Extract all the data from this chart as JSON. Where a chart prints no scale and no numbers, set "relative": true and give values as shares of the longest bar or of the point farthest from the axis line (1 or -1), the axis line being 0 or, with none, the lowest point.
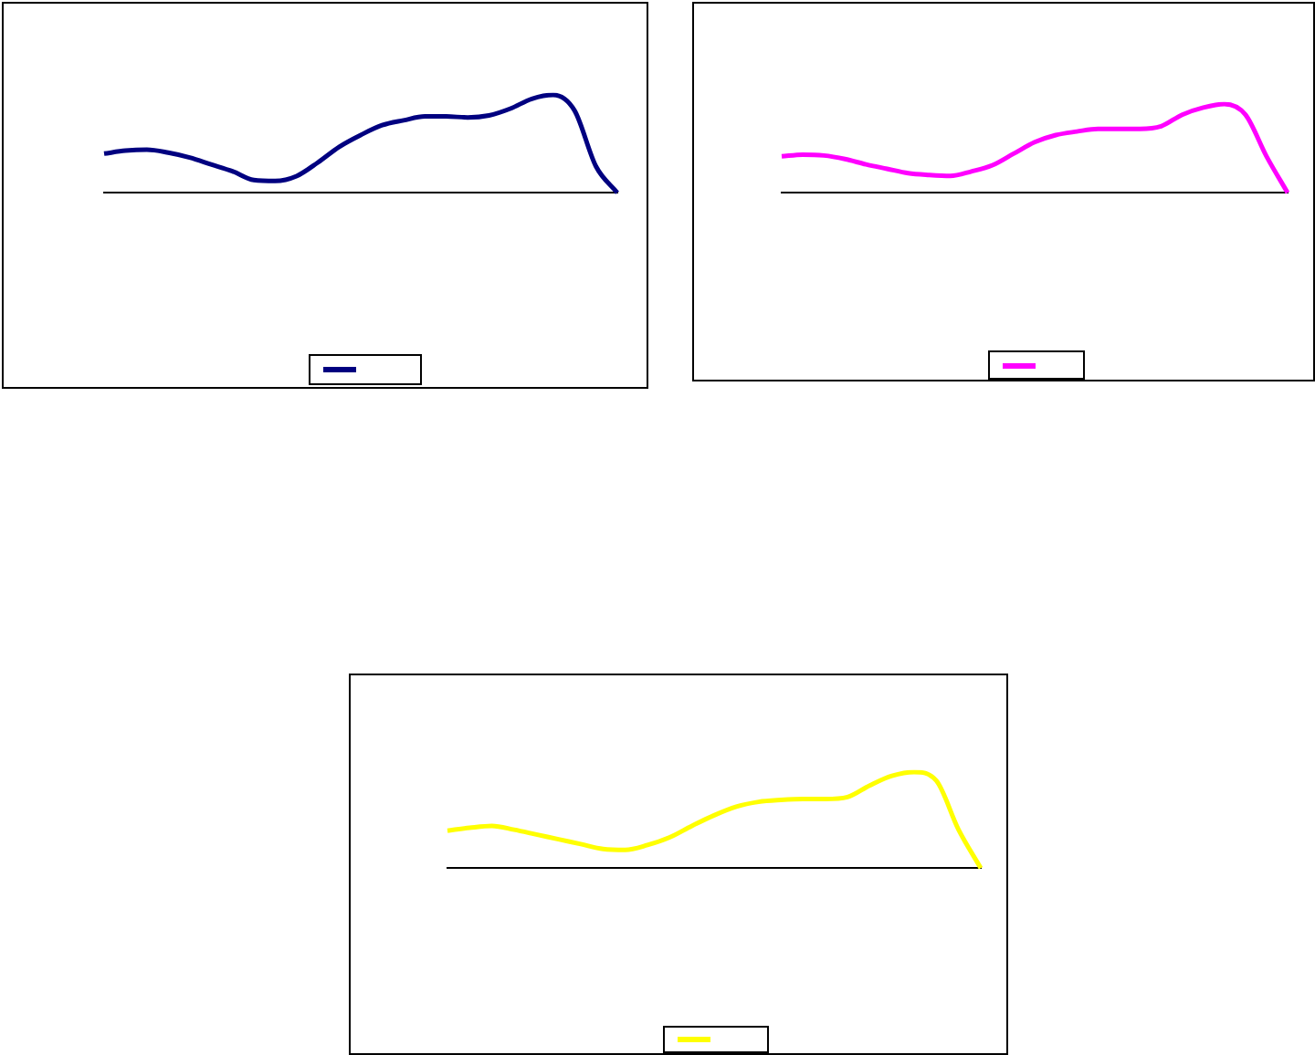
{
  "chart_data": [
    {
      "type": "line",
      "relative": true,
      "categories": [
        null,
        null,
        null,
        null,
        null,
        null,
        null,
        null,
        null,
        null,
        null,
        null,
        null,
        null,
        null,
        null,
        null,
        null,
        null,
        null,
        null,
        null,
        null,
        null,
        null
      ],
      "grid": false,
      "marker": "none",
      "line_style": "solid",
      "series": [
        {
          "color": "#000080",
          "values": [
            0.4,
            0.43,
            0.44,
            0.41,
            0.36,
            0.29,
            0.22,
            0.13,
            0.12,
            0.17,
            0.31,
            0.47,
            0.59,
            0.69,
            0.74,
            0.78,
            0.78,
            0.77,
            0.79,
            0.86,
            0.96,
            1,
            0.84,
            0.27,
            0
          ]
        }
      ]
    },
    {
      "type": "line",
      "relative": true,
      "categories": [
        null,
        null,
        null,
        null,
        null,
        null,
        null,
        null,
        null,
        null,
        null,
        null,
        null,
        null,
        null,
        null,
        null,
        null,
        null,
        null,
        null,
        null,
        null,
        null,
        null
      ],
      "grid": false,
      "marker": "none",
      "line_style": "solid",
      "series": [
        {
          "color": "#ff00ff",
          "values": [
            0.41,
            0.43,
            0.42,
            0.38,
            0.32,
            0.27,
            0.22,
            0.2,
            0.19,
            0.24,
            0.31,
            0.44,
            0.57,
            0.65,
            0.69,
            0.72,
            0.72,
            0.72,
            0.75,
            0.88,
            0.96,
            1,
            0.88,
            0.41,
            0
          ]
        }
      ]
    },
    {
      "type": "line",
      "relative": true,
      "categories": [
        null,
        null,
        null,
        null,
        null,
        null,
        null,
        null,
        null,
        null,
        null,
        null,
        null,
        null,
        null,
        null,
        null,
        null,
        null,
        null,
        null,
        null,
        null,
        null,
        null
      ],
      "grid": false,
      "marker": "none",
      "line_style": "solid",
      "series": [
        {
          "color": "#ffff00",
          "values": [
            0.39,
            0.42,
            0.44,
            0.4,
            0.35,
            0.3,
            0.25,
            0.2,
            0.19,
            0.24,
            0.32,
            0.44,
            0.55,
            0.64,
            0.69,
            0.71,
            0.72,
            0.72,
            0.74,
            0.86,
            0.96,
            1,
            0.91,
            0.4,
            0
          ]
        }
      ]
    }
  ]
}
